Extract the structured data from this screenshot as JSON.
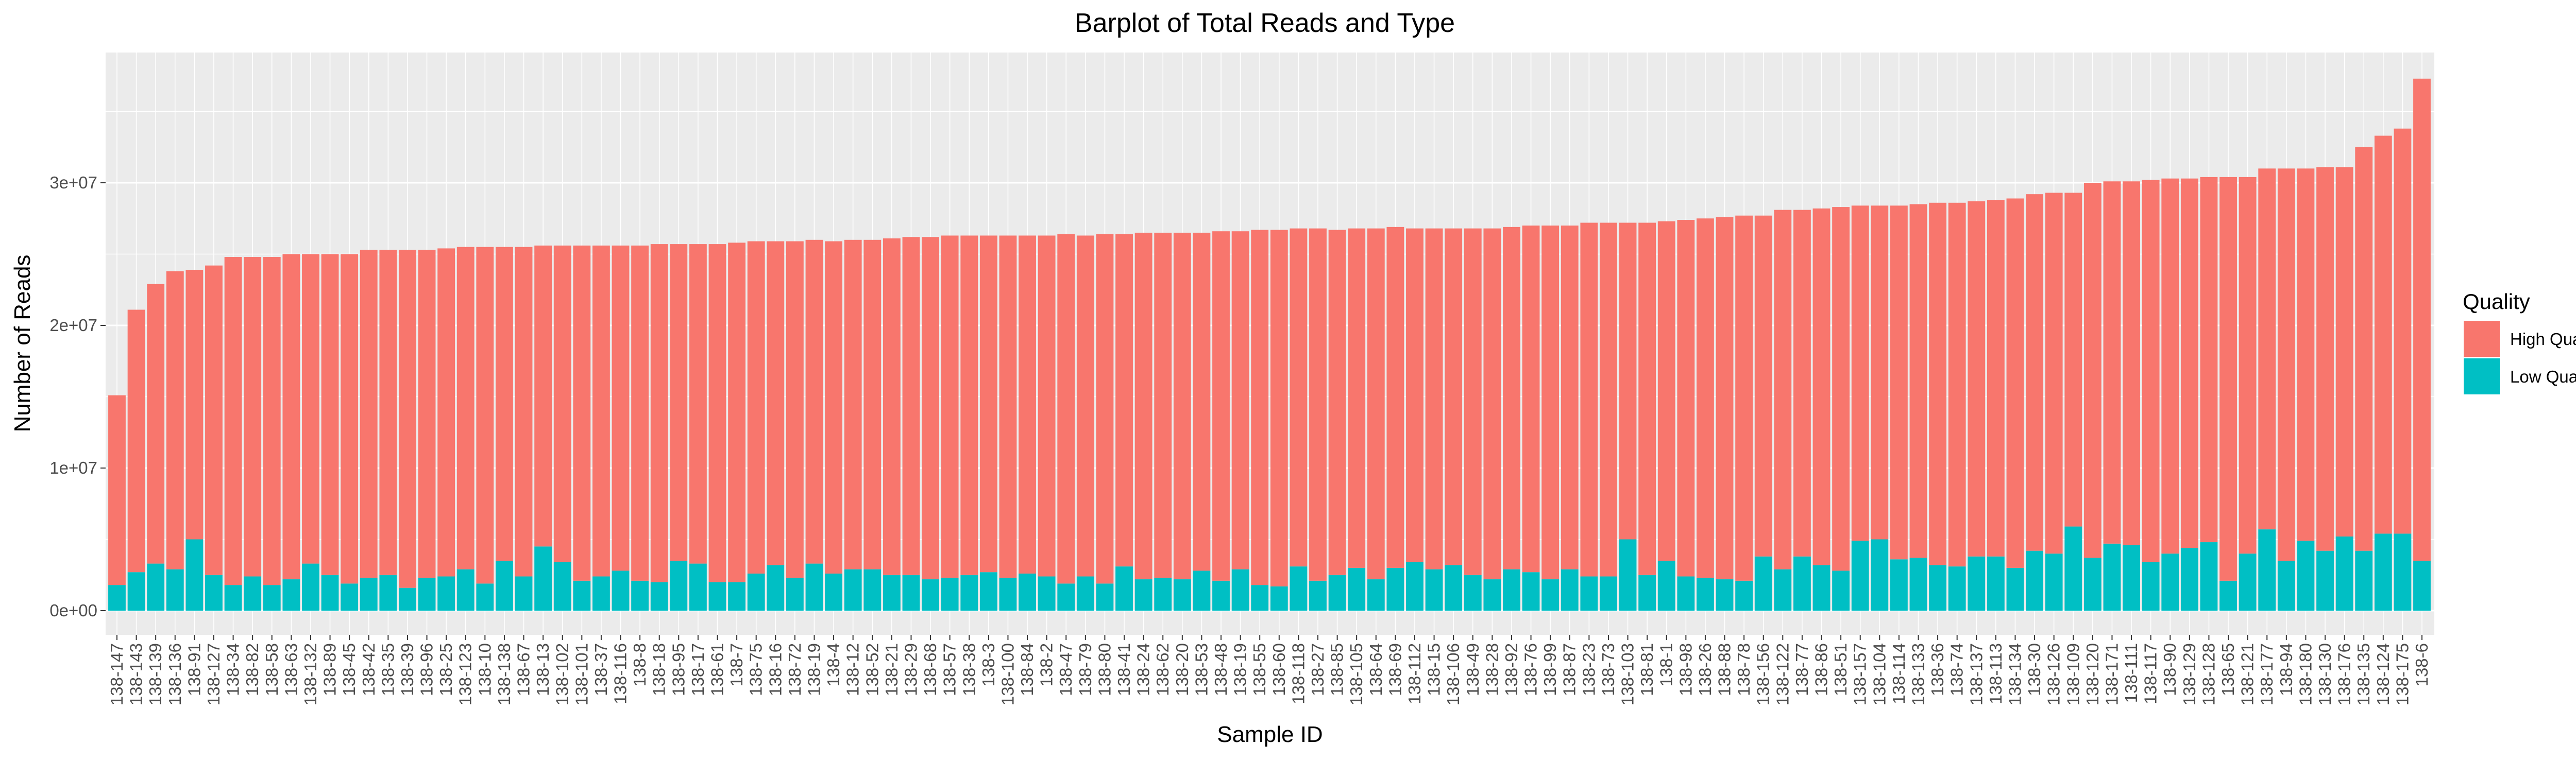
{
  "chart_data": {
    "type": "bar",
    "stacked": true,
    "title": "Barplot of Total Reads and Type",
    "xlabel": "Sample ID",
    "ylabel": "Number of Reads",
    "ylim": [
      0,
      39000000
    ],
    "yticks": [
      0,
      10000000,
      20000000,
      30000000
    ],
    "ytick_labels": [
      "0e+00",
      "1e+07",
      "2e+07",
      "3e+07"
    ],
    "grid": true,
    "legend": {
      "title": "Quality",
      "position": "right"
    },
    "categories": [
      "138-147",
      "138-143",
      "138-139",
      "138-136",
      "138-91",
      "138-127",
      "138-34",
      "138-82",
      "138-58",
      "138-63",
      "138-132",
      "138-89",
      "138-45",
      "138-42",
      "138-35",
      "138-39",
      "138-96",
      "138-25",
      "138-123",
      "138-10",
      "138-138",
      "138-67",
      "138-13",
      "138-102",
      "138-101",
      "138-37",
      "138-116",
      "138-8",
      "138-18",
      "138-95",
      "138-17",
      "138-61",
      "138-7",
      "138-75",
      "138-16",
      "138-72",
      "138-19",
      "138-4",
      "138-12",
      "138-52",
      "138-21",
      "138-29",
      "138-68",
      "138-57",
      "138-38",
      "138-3",
      "138-100",
      "138-84",
      "138-2",
      "138-47",
      "138-79",
      "138-80",
      "138-41",
      "138-24",
      "138-62",
      "138-20",
      "138-53",
      "138-48",
      "138-19",
      "138-55",
      "138-60",
      "138-118",
      "138-27",
      "138-85",
      "138-105",
      "138-64",
      "138-69",
      "138-112",
      "138-15",
      "138-106",
      "138-49",
      "138-28",
      "138-92",
      "138-76",
      "138-99",
      "138-87",
      "138-23",
      "138-73",
      "138-103",
      "138-81",
      "138-1",
      "138-98",
      "138-26",
      "138-88",
      "138-78",
      "138-156",
      "138-122",
      "138-77",
      "138-86",
      "138-51",
      "138-157",
      "138-104",
      "138-114",
      "138-133",
      "138-36",
      "138-74",
      "138-137",
      "138-113",
      "138-134",
      "138-30",
      "138-126",
      "138-109",
      "138-120",
      "138-171",
      "138-111",
      "138-117",
      "138-90",
      "138-129",
      "138-128",
      "138-65",
      "138-121",
      "138-177",
      "138-94",
      "138-180",
      "138-130",
      "138-176",
      "138-135",
      "138-124",
      "138-175",
      "138-6"
    ],
    "series": [
      {
        "name": "High Quality",
        "color": "#F8766D",
        "values": [
          13300000,
          18400000,
          19600000,
          20900000,
          18900000,
          21700000,
          23000000,
          22400000,
          23000000,
          22800000,
          21700000,
          22500000,
          23100000,
          23000000,
          22800000,
          23700000,
          23000000,
          23000000,
          22600000,
          23600000,
          22000000,
          23100000,
          21100000,
          22200000,
          23500000,
          23200000,
          22800000,
          23500000,
          23700000,
          22200000,
          22400000,
          23700000,
          23800000,
          23300000,
          22700000,
          23600000,
          22700000,
          23300000,
          23100000,
          23100000,
          23600000,
          23700000,
          24000000,
          24000000,
          23800000,
          23600000,
          24000000,
          23700000,
          23900000,
          24500000,
          23900000,
          24500000,
          23300000,
          24300000,
          24200000,
          24300000,
          23700000,
          24500000,
          23700000,
          24900000,
          25000000,
          23700000,
          24700000,
          24200000,
          23800000,
          24600000,
          23900000,
          23400000,
          23900000,
          23600000,
          24300000,
          24600000,
          24000000,
          24300000,
          24800000,
          24100000,
          24800000,
          24800000,
          22200000,
          24700000,
          23800000,
          25000000,
          25200000,
          25400000,
          25600000,
          23900000,
          25200000,
          24300000,
          25000000,
          25500000,
          23500000,
          23400000,
          24800000,
          24800000,
          25400000,
          25500000,
          24900000,
          25000000,
          25900000,
          25000000,
          25300000,
          23400000,
          26300000,
          25400000,
          25500000,
          26800000,
          26300000,
          25900000,
          25600000,
          28300000,
          26400000,
          25300000,
          27500000,
          26100000,
          26900000,
          25900000,
          28300000,
          27900000,
          28400000,
          33800000
        ]
      },
      {
        "name": "Low Quality",
        "color": "#00BFC4",
        "values": [
          1800000,
          2700000,
          3300000,
          2900000,
          5000000,
          2500000,
          1800000,
          2400000,
          1800000,
          2200000,
          3300000,
          2500000,
          1900000,
          2300000,
          2500000,
          1600000,
          2300000,
          2400000,
          2900000,
          1900000,
          3500000,
          2400000,
          4500000,
          3400000,
          2100000,
          2400000,
          2800000,
          2100000,
          2000000,
          3500000,
          3300000,
          2000000,
          2000000,
          2600000,
          3200000,
          2300000,
          3300000,
          2600000,
          2900000,
          2900000,
          2500000,
          2500000,
          2200000,
          2300000,
          2500000,
          2700000,
          2300000,
          2600000,
          2400000,
          1900000,
          2400000,
          1900000,
          3100000,
          2200000,
          2300000,
          2200000,
          2800000,
          2100000,
          2900000,
          1800000,
          1700000,
          3100000,
          2100000,
          2500000,
          3000000,
          2200000,
          3000000,
          3400000,
          2900000,
          3200000,
          2500000,
          2200000,
          2900000,
          2700000,
          2200000,
          2900000,
          2400000,
          2400000,
          5000000,
          2500000,
          3500000,
          2400000,
          2300000,
          2200000,
          2100000,
          3800000,
          2900000,
          3800000,
          3200000,
          2800000,
          4900000,
          5000000,
          3600000,
          3700000,
          3200000,
          3100000,
          3800000,
          3800000,
          3000000,
          4200000,
          4000000,
          5900000,
          3700000,
          4700000,
          4600000,
          3400000,
          4000000,
          4400000,
          4800000,
          2100000,
          4000000,
          5700000,
          3500000,
          4900000,
          4200000,
          5200000,
          4200000,
          5400000,
          5400000,
          3500000
        ]
      }
    ]
  }
}
